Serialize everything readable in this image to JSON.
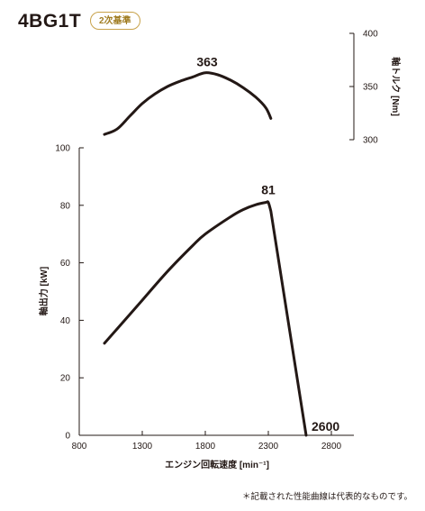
{
  "header": {
    "title": "4BG1T",
    "badge": "2次基準"
  },
  "footnote": "＊記載された性能曲線は代表的なものです。",
  "chart_data": [
    {
      "type": "line",
      "series_label": "軸出力",
      "ylabel": "軸出力 [kW]",
      "xlabel": "エンジン回転速度 [min⁻¹]",
      "xlim": [
        800,
        2900
      ],
      "ylim": [
        0,
        100
      ],
      "xticks": [
        800,
        1300,
        1800,
        2300,
        2800
      ],
      "yticks": [
        0,
        20,
        40,
        60,
        80,
        100
      ],
      "x": [
        1000,
        1100,
        1300,
        1500,
        1700,
        1800,
        2000,
        2100,
        2200,
        2280,
        2300,
        2320,
        2600
      ],
      "y": [
        32,
        37,
        47,
        57,
        66,
        70,
        76,
        78.5,
        80.2,
        81,
        81,
        78,
        0
      ],
      "annotations": [
        {
          "text": "81",
          "x": 2300,
          "y": 81
        },
        {
          "text": "2600",
          "x": 2600,
          "y": 0
        }
      ]
    },
    {
      "type": "line",
      "series_label": "軸トルク",
      "ylabel": "軸トルク [Nm]",
      "ylim": [
        300,
        400
      ],
      "yticks": [
        300,
        350,
        400
      ],
      "x": [
        1000,
        1100,
        1200,
        1300,
        1400,
        1500,
        1600,
        1700,
        1800,
        1900,
        2000,
        2100,
        2200,
        2280,
        2320
      ],
      "y": [
        305,
        310,
        322,
        334,
        343,
        350,
        355,
        359,
        363,
        361,
        356,
        349,
        340,
        330,
        320
      ],
      "annotations": [
        {
          "text": "363",
          "x": 1800,
          "y": 363
        }
      ]
    }
  ]
}
